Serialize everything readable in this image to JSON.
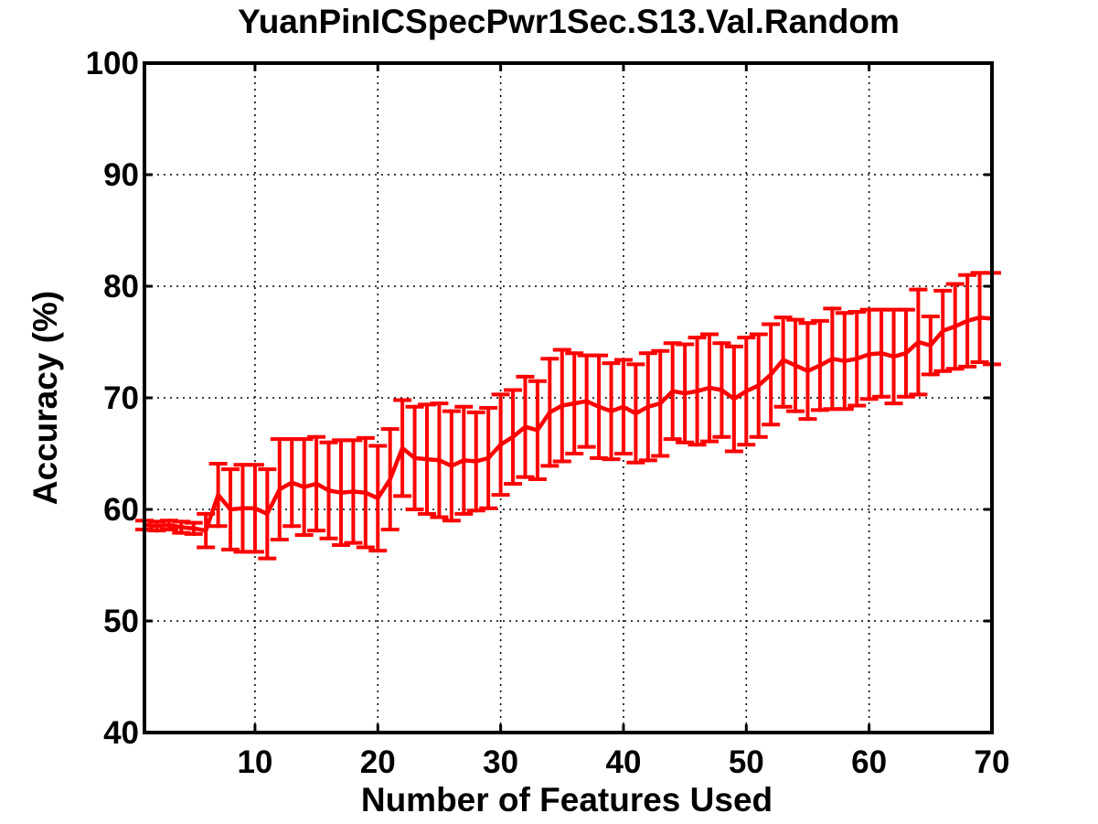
{
  "chart_data": {
    "type": "line",
    "title": "YuanPinICSpecPwr1Sec.S13.Val.Random",
    "xlabel": "Number of Features Used",
    "ylabel": "Accuracy (%)",
    "xlim": [
      1,
      70
    ],
    "ylim": [
      40,
      100
    ],
    "xticks": [
      10,
      20,
      30,
      40,
      50,
      60,
      70
    ],
    "yticks": [
      40,
      50,
      60,
      70,
      80,
      90,
      100
    ],
    "grid": true,
    "series": [
      {
        "color": "#ff0000",
        "x": [
          1,
          2,
          3,
          4,
          5,
          6,
          7,
          8,
          9,
          10,
          11,
          12,
          13,
          14,
          15,
          16,
          17,
          18,
          19,
          20,
          21,
          22,
          23,
          24,
          25,
          26,
          27,
          28,
          29,
          30,
          31,
          32,
          33,
          34,
          35,
          36,
          37,
          38,
          39,
          40,
          41,
          42,
          43,
          44,
          45,
          46,
          47,
          48,
          49,
          50,
          51,
          52,
          53,
          54,
          55,
          56,
          57,
          58,
          59,
          60,
          61,
          62,
          63,
          64,
          65,
          66,
          67,
          68,
          69,
          70
        ],
        "y": [
          58.6,
          58.5,
          58.6,
          58.4,
          58.3,
          58.1,
          61.3,
          60.0,
          60.1,
          60.1,
          59.6,
          61.8,
          62.4,
          62.0,
          62.3,
          61.7,
          61.5,
          61.6,
          61.5,
          61.0,
          62.7,
          65.5,
          64.6,
          64.5,
          64.4,
          63.9,
          64.4,
          64.3,
          64.6,
          65.8,
          66.5,
          67.4,
          67.1,
          68.7,
          69.3,
          69.5,
          69.7,
          69.2,
          68.8,
          69.2,
          68.6,
          69.2,
          69.5,
          70.6,
          70.4,
          70.6,
          70.9,
          70.7,
          69.9,
          70.6,
          71.1,
          72.1,
          73.4,
          72.9,
          72.4,
          72.9,
          73.5,
          73.3,
          73.5,
          73.9,
          74.0,
          73.7,
          74.0,
          75.0,
          74.7,
          76.0,
          76.4,
          76.9,
          77.2,
          77.1
        ],
        "err_low": [
          58.2,
          58.1,
          58.2,
          57.9,
          57.8,
          56.6,
          58.5,
          56.4,
          56.2,
          56.2,
          55.6,
          57.3,
          58.5,
          57.7,
          58.1,
          57.4,
          56.8,
          57.0,
          56.6,
          56.3,
          58.2,
          61.2,
          60.0,
          59.6,
          59.3,
          59.0,
          59.6,
          59.9,
          60.1,
          61.3,
          62.3,
          62.9,
          62.7,
          63.9,
          64.3,
          65.0,
          65.6,
          64.6,
          64.5,
          65.0,
          64.2,
          64.4,
          64.8,
          66.3,
          66.0,
          65.8,
          66.1,
          66.5,
          65.2,
          65.8,
          66.5,
          67.6,
          69.2,
          68.8,
          68.1,
          68.9,
          69.0,
          69.0,
          69.3,
          69.9,
          70.1,
          69.5,
          70.1,
          70.3,
          72.1,
          72.4,
          72.6,
          72.8,
          73.2,
          73.0
        ],
        "err_high": [
          59.0,
          58.9,
          59.0,
          58.9,
          58.8,
          59.6,
          64.1,
          63.6,
          64.0,
          64.0,
          63.6,
          66.3,
          66.3,
          66.3,
          66.5,
          66.0,
          66.2,
          66.2,
          66.4,
          65.7,
          67.2,
          69.8,
          69.2,
          69.4,
          69.5,
          68.8,
          69.2,
          68.7,
          69.1,
          70.3,
          70.7,
          71.9,
          71.5,
          73.5,
          74.3,
          74.0,
          73.8,
          73.8,
          73.1,
          73.4,
          73.0,
          74.0,
          74.2,
          74.9,
          74.8,
          75.4,
          75.7,
          74.9,
          74.6,
          75.4,
          75.7,
          76.6,
          77.2,
          77.0,
          76.7,
          76.9,
          78.0,
          77.6,
          77.7,
          77.9,
          77.9,
          77.9,
          77.9,
          79.7,
          77.3,
          79.6,
          80.2,
          81.0,
          81.2,
          81.2
        ]
      }
    ]
  }
}
